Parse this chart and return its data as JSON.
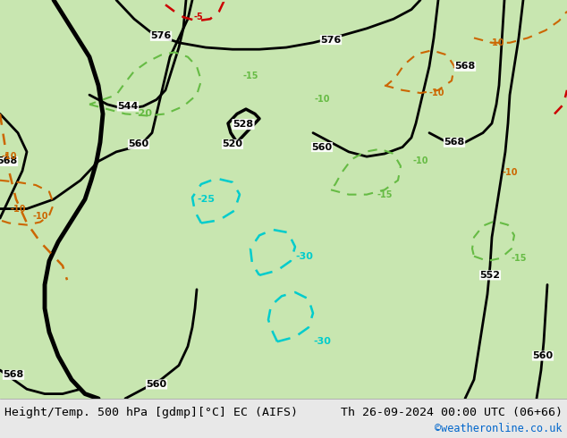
{
  "title_left": "Height/Temp. 500 hPa [gdmp][°C] EC (AIFS)",
  "title_right": "Th 26-09-2024 00:00 UTC (06+66)",
  "credit": "©weatheronline.co.uk",
  "credit_color": "#0066cc",
  "bg_land_color": "#c8e6b0",
  "bg_sea_color": "#d0e8f0",
  "bg_gray_color": "#d8d8d8",
  "footer_bg": "#e8e8e8",
  "fig_width": 6.34,
  "fig_height": 4.9,
  "dpi": 100
}
